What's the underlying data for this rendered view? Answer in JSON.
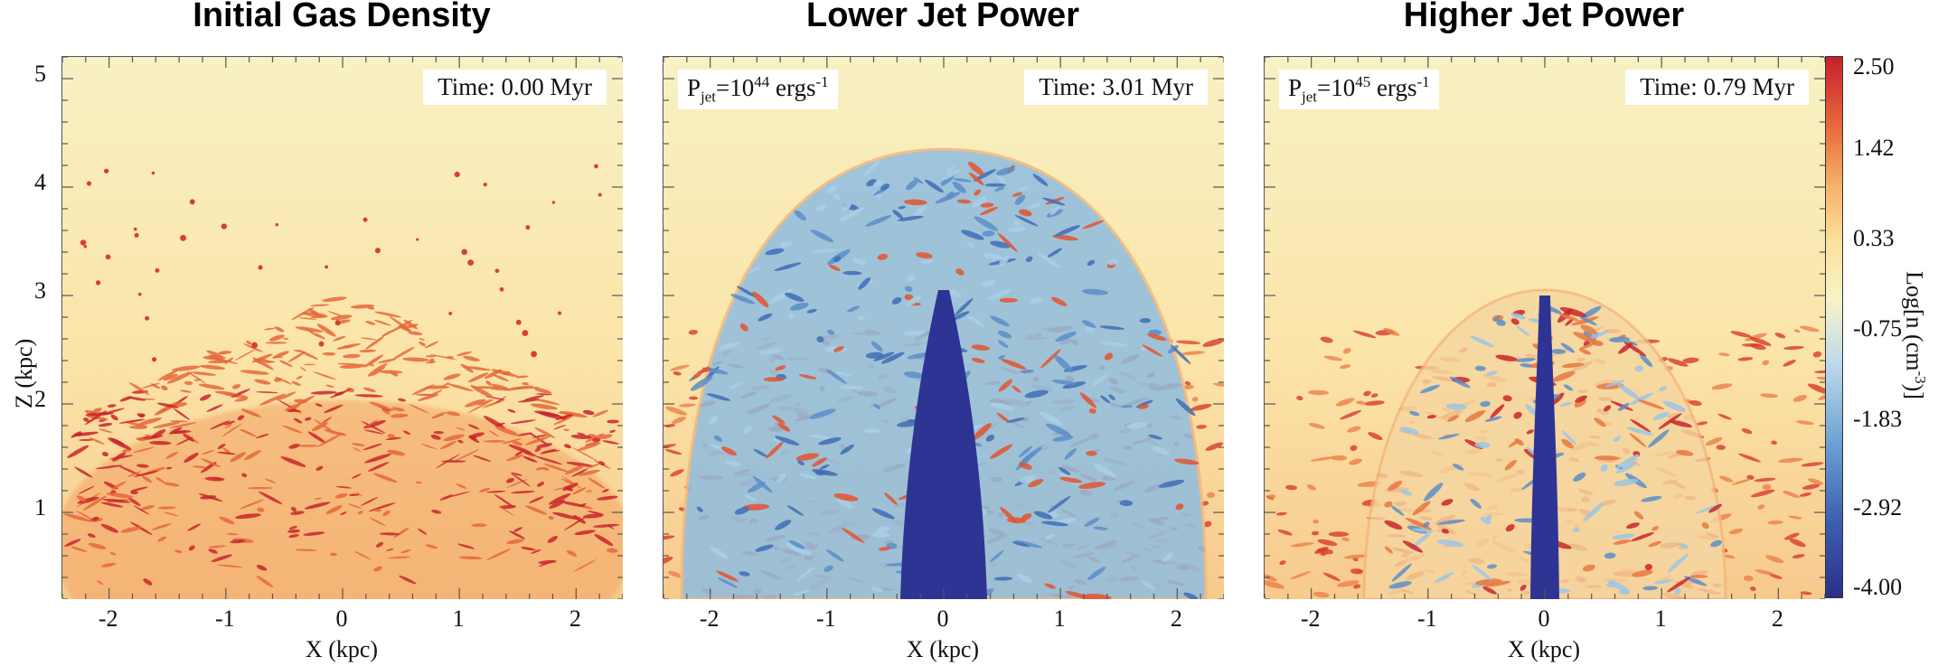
{
  "chart_data": [
    {
      "type": "heatmap",
      "title": "Initial Gas Density",
      "time_label": "Time: 0.00 Myr",
      "jet_power": null,
      "xlabel": "X (kpc)",
      "ylabel": "Z (kpc)",
      "xlim": [
        -2.4,
        2.4
      ],
      "ylim": [
        0.2,
        5.2
      ],
      "xticks": [
        "-2",
        "-1",
        "0",
        "1",
        "2"
      ],
      "yticks": [
        "1",
        "2",
        "3",
        "4",
        "5"
      ],
      "structure": "dense clumpy clouds below ~2 kpc"
    },
    {
      "type": "heatmap",
      "title": "Lower Jet Power",
      "time_label": "Time: 3.01 Myr",
      "jet_power": {
        "prefix": "P",
        "sub": "jet",
        "mid": "=10",
        "exp": "44",
        "unit": " ergs",
        "unit_exp": "-1"
      },
      "xlabel": "X (kpc)",
      "ylabel": "",
      "xlim": [
        -2.4,
        2.4
      ],
      "ylim": [
        0.2,
        5.2
      ],
      "xticks": [
        "-2",
        "-1",
        "0",
        "1",
        "2"
      ],
      "structure": "broad low-density jet cocoon reaching ~4.3 kpc"
    },
    {
      "type": "heatmap",
      "title": "Higher Jet Power",
      "time_label": "Time: 0.79 Myr",
      "jet_power": {
        "prefix": "P",
        "sub": "jet",
        "mid": "=10",
        "exp": "45",
        "unit": " ergs",
        "unit_exp": "-1"
      },
      "xlabel": "X (kpc)",
      "ylabel": "",
      "xlim": [
        -2.4,
        2.4
      ],
      "ylim": [
        0.2,
        5.2
      ],
      "xticks": [
        "-2",
        "-1",
        "0",
        "1",
        "2"
      ],
      "structure": "narrow jet with bubble reaching ~3.0 kpc"
    }
  ],
  "colorbar": {
    "label_main": "Log[n (cm",
    "label_exp": "-3",
    "label_end": ")]",
    "ticks": [
      "2.50",
      "1.42",
      "0.33",
      "-0.75",
      "-1.83",
      "-2.92",
      "-4.00"
    ],
    "range": [
      -4.0,
      2.5
    ],
    "colors": [
      "#2b2f8a",
      "#3d5fae",
      "#6a9fd0",
      "#bcd9ec",
      "#f6f4c8",
      "#fbe09a",
      "#f6b26b",
      "#e86a3c",
      "#c6202a"
    ]
  }
}
